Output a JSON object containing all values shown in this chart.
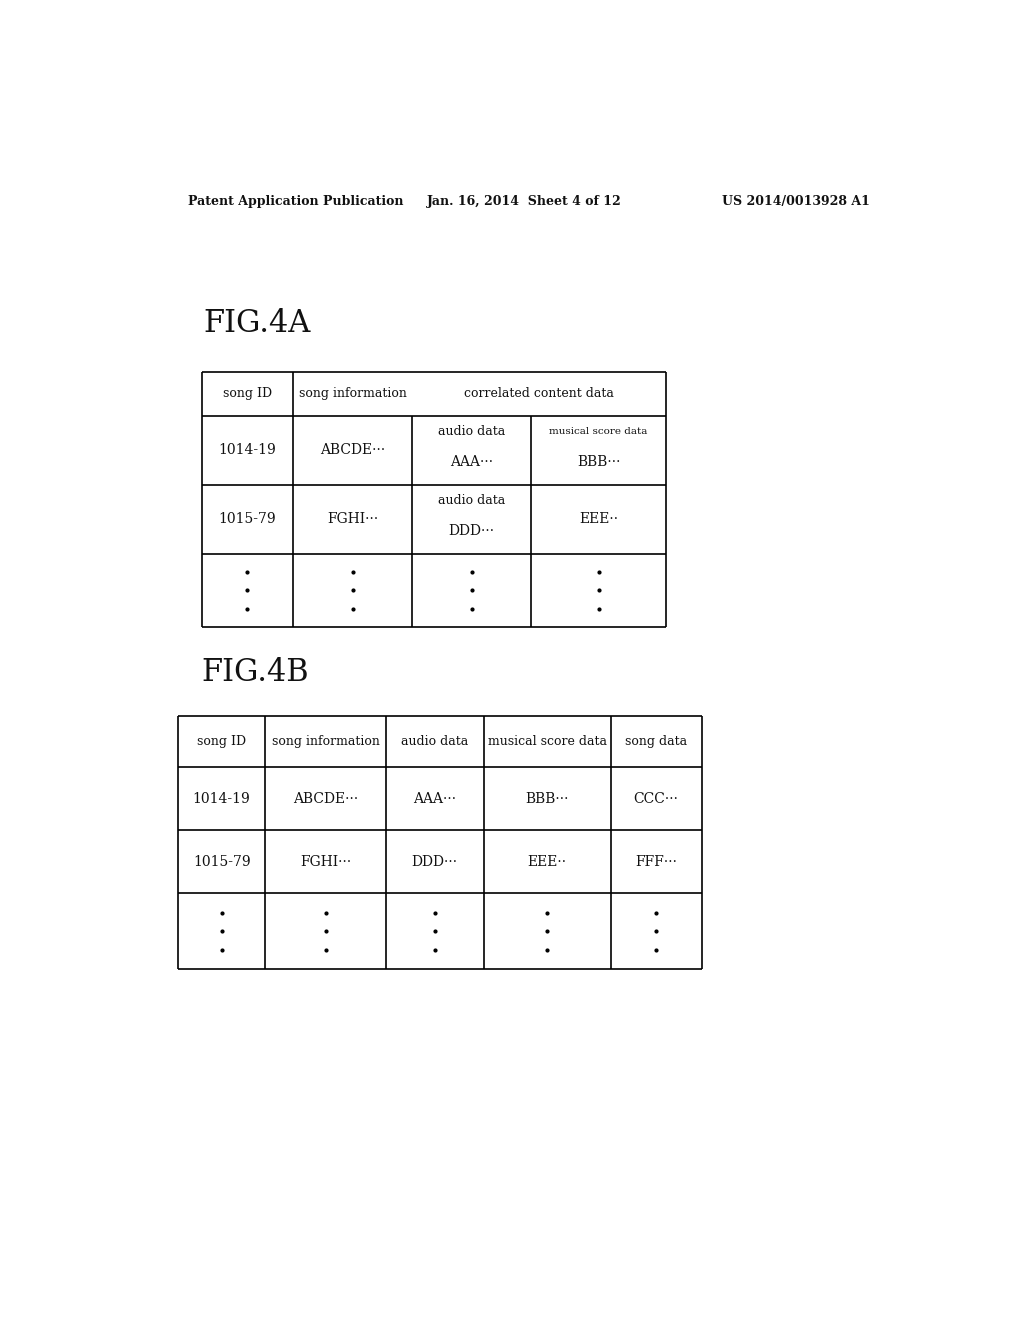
{
  "bg_color": "#ffffff",
  "header_text": {
    "left": "Patent Application Publication",
    "center": "Jan. 16, 2014  Sheet 4 of 12",
    "right": "US 2014/0013928 A1"
  },
  "fig4a_label": "FIG.4A",
  "fig4b_label": "FIG.4B",
  "fig4a": {
    "rows": [
      [
        "1014-19",
        "ABCDE···",
        "audio data\nAAA···",
        "BBB···"
      ],
      [
        "1015-79",
        "FGHI···",
        "audio data\nDDD···",
        "EEE··"
      ]
    ]
  },
  "fig4b": {
    "headers": [
      "song ID",
      "song information",
      "audio data",
      "musical score data",
      "song data"
    ],
    "rows": [
      [
        "1014-19",
        "ABCDE···",
        "AAA···",
        "BBB···",
        "CCC···"
      ],
      [
        "1015-79",
        "FGHI···",
        "DDD···",
        "EEE··",
        "FFF···"
      ]
    ]
  },
  "font_size_header_text": 9,
  "font_size_fig_label": 22,
  "font_size_table_header": 9,
  "font_size_table_cell": 10
}
